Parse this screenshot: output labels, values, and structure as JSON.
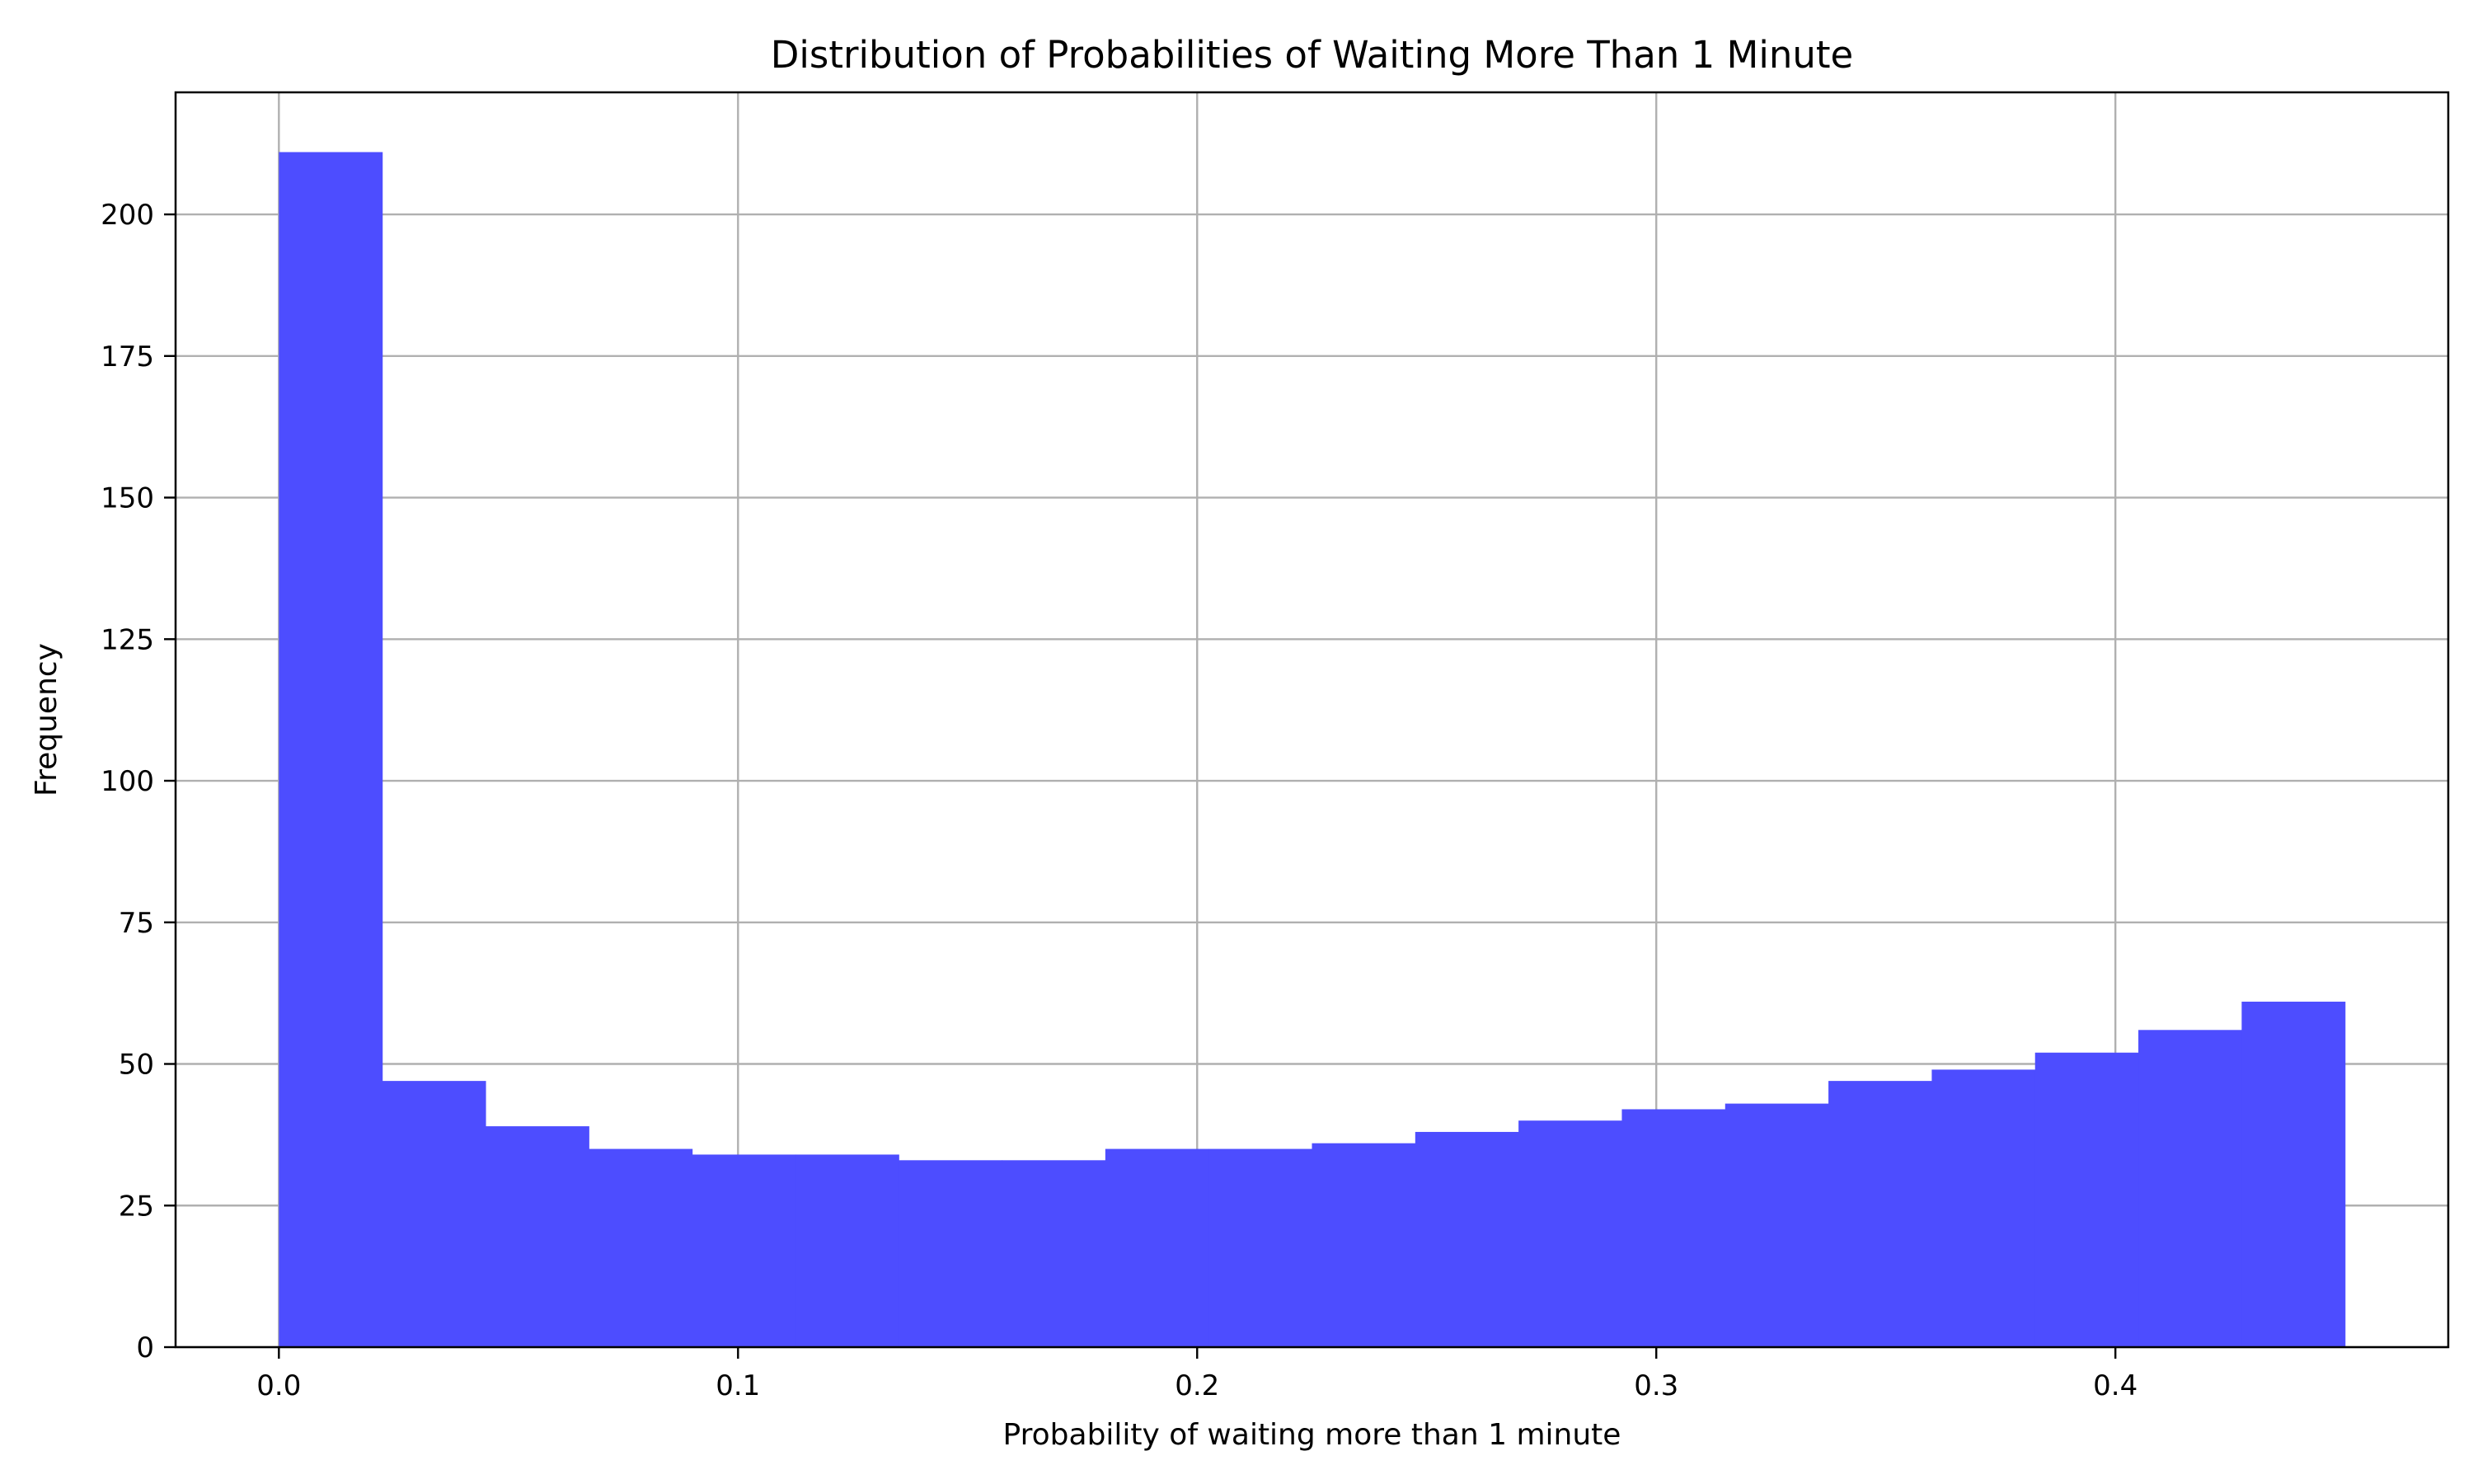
{
  "chart_data": {
    "type": "bar",
    "title": "Distribution of Probabilities of Waiting More Than 1 Minute",
    "xlabel": "Probability of waiting more than 1 minute",
    "ylabel": "Frequency",
    "bin_edges": [
      0.0,
      0.0225,
      0.045,
      0.0675,
      0.09,
      0.1125,
      0.135,
      0.1575,
      0.18,
      0.2025,
      0.225,
      0.2475,
      0.27,
      0.2925,
      0.315,
      0.3375,
      0.36,
      0.3825,
      0.405,
      0.4275,
      0.45
    ],
    "values": [
      211,
      47,
      39,
      35,
      34,
      34,
      33,
      33,
      35,
      35,
      36,
      38,
      40,
      42,
      43,
      47,
      49,
      52,
      56,
      61
    ],
    "xlim": [
      -0.0225,
      0.4725
    ],
    "ylim": [
      0,
      221.55
    ],
    "xticks": [
      0.0,
      0.1,
      0.2,
      0.3,
      0.4
    ],
    "xtick_labels": [
      "0.0",
      "0.1",
      "0.2",
      "0.3",
      "0.4"
    ],
    "yticks": [
      0,
      25,
      50,
      75,
      100,
      125,
      150,
      175,
      200
    ],
    "ytick_labels": [
      "0",
      "25",
      "50",
      "75",
      "100",
      "125",
      "150",
      "175",
      "200"
    ],
    "grid": true,
    "colors": {
      "bar": "#4d4dff",
      "grid": "#b0b0b0",
      "axis": "#000000"
    }
  }
}
